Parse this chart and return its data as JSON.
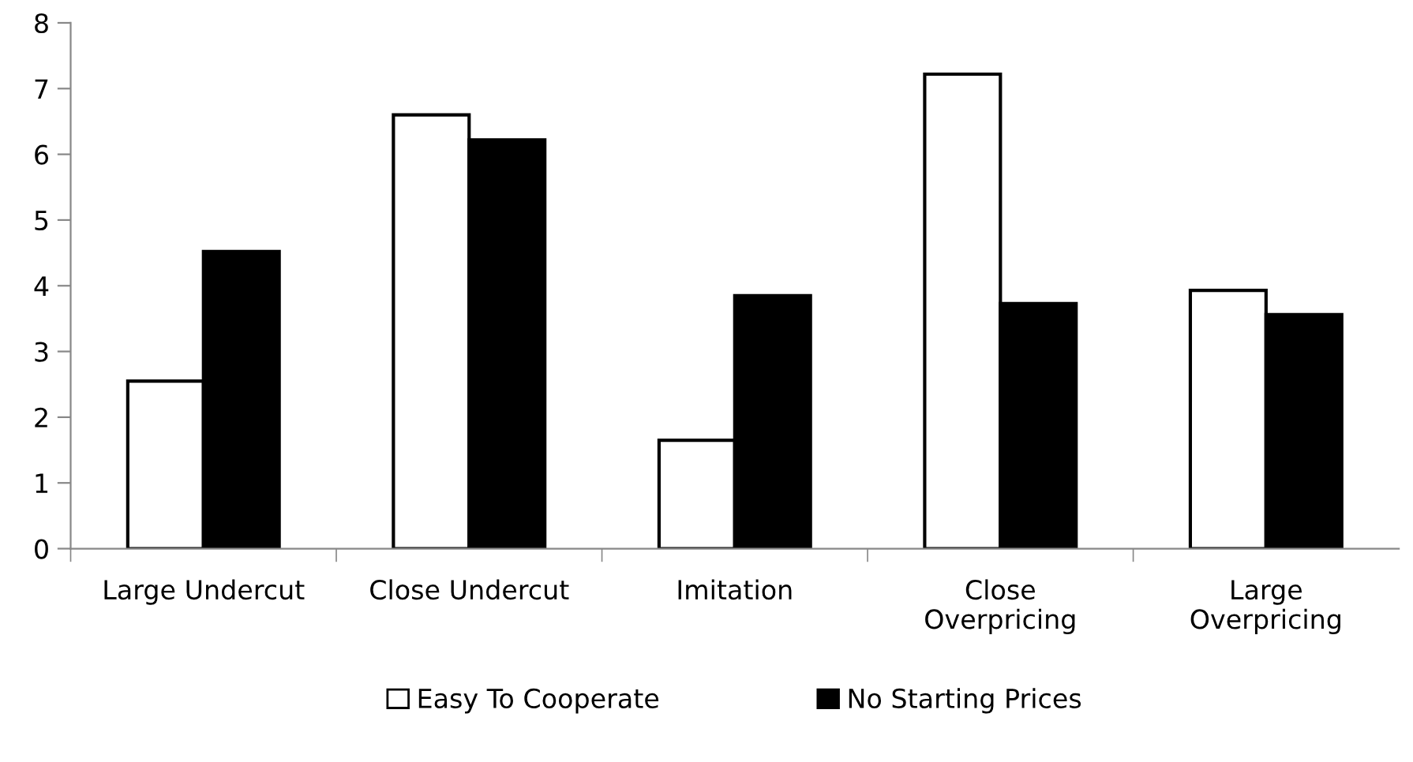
{
  "chart_data": {
    "type": "bar",
    "categories": [
      "Large Undercut",
      "Close Undercut",
      "Imitation",
      "Close\nOverpricing",
      "Large\nOverpricing"
    ],
    "series": [
      {
        "name": "Easy To Cooperate",
        "color": "#ffffff",
        "values": [
          2.55,
          6.6,
          1.65,
          7.22,
          3.93
        ]
      },
      {
        "name": "No Starting Prices",
        "color": "#000000",
        "values": [
          4.52,
          6.22,
          3.85,
          3.73,
          3.56
        ]
      }
    ],
    "ylim": [
      0,
      8
    ],
    "yticks": [
      0,
      1,
      2,
      3,
      4,
      5,
      6,
      7,
      8
    ],
    "grid": false,
    "legend": "bottom"
  }
}
